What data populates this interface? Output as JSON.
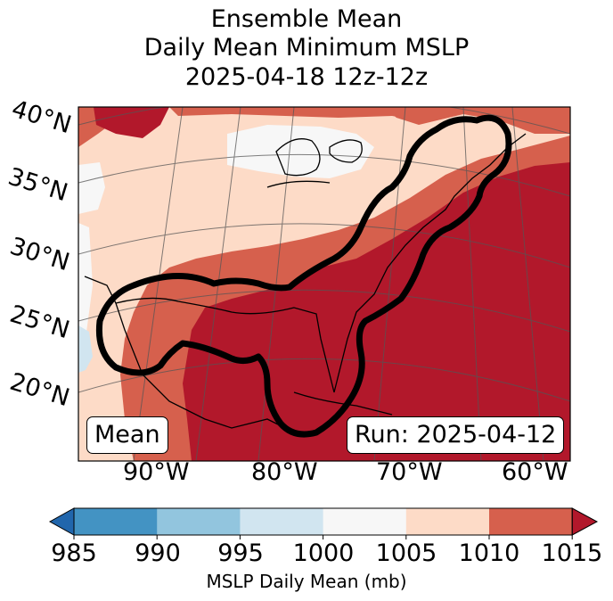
{
  "title": {
    "line1": "Ensemble Mean",
    "line2": "Daily Mean Minimum MSLP",
    "line3": "2025-04-18 12z-12z"
  },
  "lat_labels": [
    "40°N",
    "35°N",
    "30°N",
    "25°N",
    "20°N"
  ],
  "lon_labels": [
    "90°W",
    "80°W",
    "70°W",
    "60°W"
  ],
  "mean_label": "Mean",
  "run_label": "Run: 2025-04-12",
  "colorbar": {
    "ticks": [
      "985",
      "990",
      "995",
      "1000",
      "1005",
      "1010",
      "1015"
    ],
    "label": "MSLP Daily Mean (mb)",
    "colors": [
      "#2166ac",
      "#4393c3",
      "#92c5de",
      "#d1e5f0",
      "#f7f7f7",
      "#fddbc7",
      "#d6604d",
      "#b2182b"
    ]
  }
}
